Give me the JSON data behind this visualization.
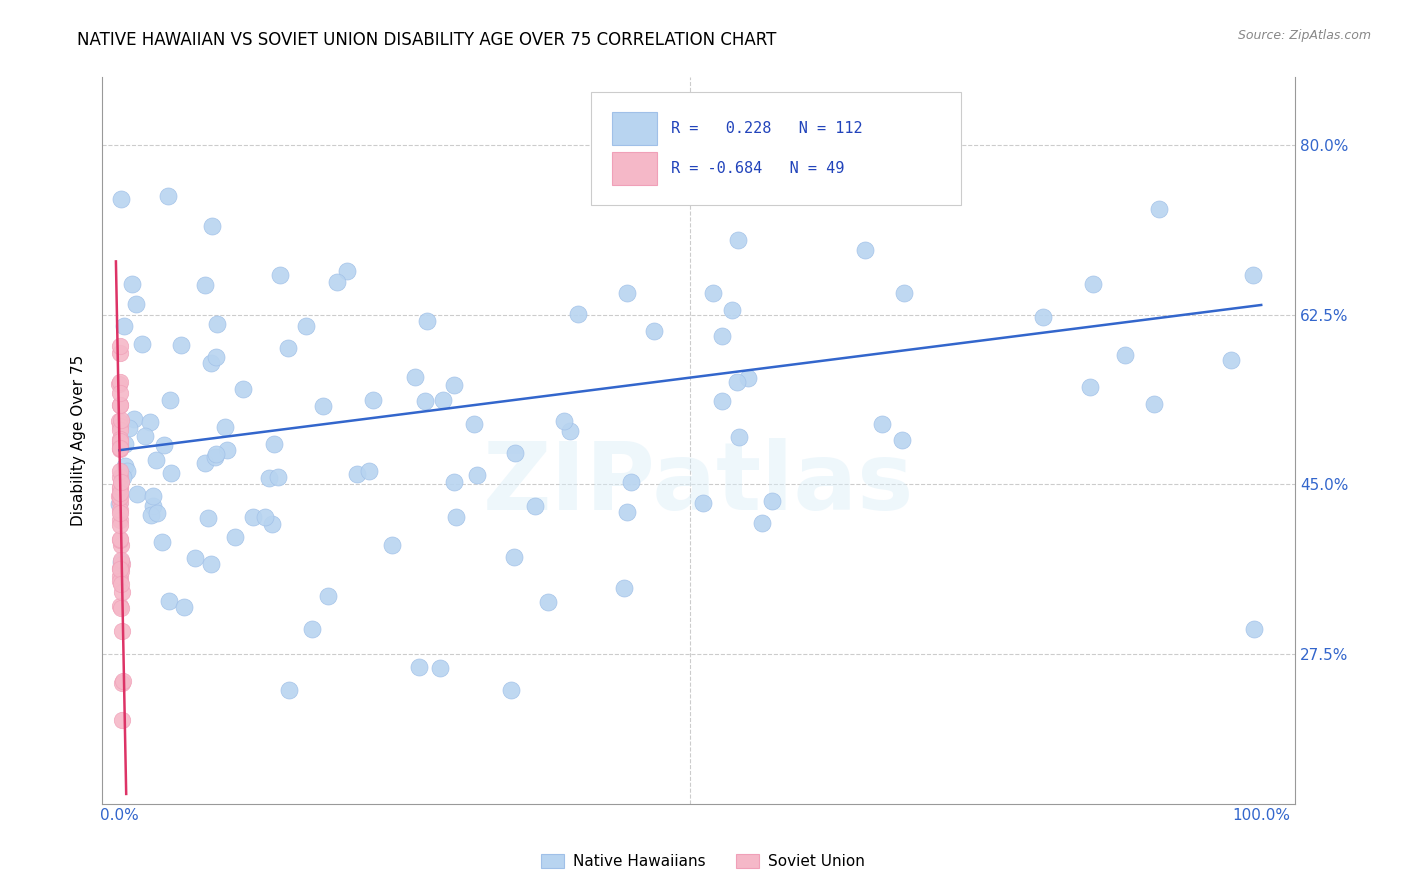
{
  "title": "NATIVE HAWAIIAN VS SOVIET UNION DISABILITY AGE OVER 75 CORRELATION CHART",
  "source": "Source: ZipAtlas.com",
  "ylabel": "Disability Age Over 75",
  "blue_color": "#b8d4f0",
  "blue_edge": "#a0c0e8",
  "pink_color": "#f5b8c8",
  "pink_edge": "#f0a0b8",
  "line_blue": "#3366cc",
  "line_pink": "#dd3366",
  "watermark": "ZIPatlas",
  "ytick_vals": [
    0.275,
    0.45,
    0.625,
    0.8
  ],
  "ytick_labels": [
    "27.5%",
    "45.0%",
    "62.5%",
    "80.0%"
  ],
  "xtick_vals": [
    0.0,
    0.2,
    0.4,
    0.6,
    0.8,
    1.0
  ],
  "xtick_labels": [
    "0.0%",
    "",
    "",
    "",
    "",
    "100.0%"
  ],
  "xlim": [
    -0.015,
    1.03
  ],
  "ylim": [
    0.12,
    0.87
  ],
  "blue_line_x0": 0.0,
  "blue_line_x1": 1.0,
  "blue_line_y0": 0.485,
  "blue_line_y1": 0.635,
  "pink_line_x0": -0.003,
  "pink_line_x1": 0.006,
  "pink_line_y0": 0.68,
  "pink_line_y1": 0.13,
  "legend_r1_text": "R =   0.228   N = 112",
  "legend_r2_text": "R = -0.684   N = 49",
  "tick_color": "#3366cc",
  "grid_color": "#cccccc",
  "title_fontsize": 12,
  "tick_fontsize": 11
}
